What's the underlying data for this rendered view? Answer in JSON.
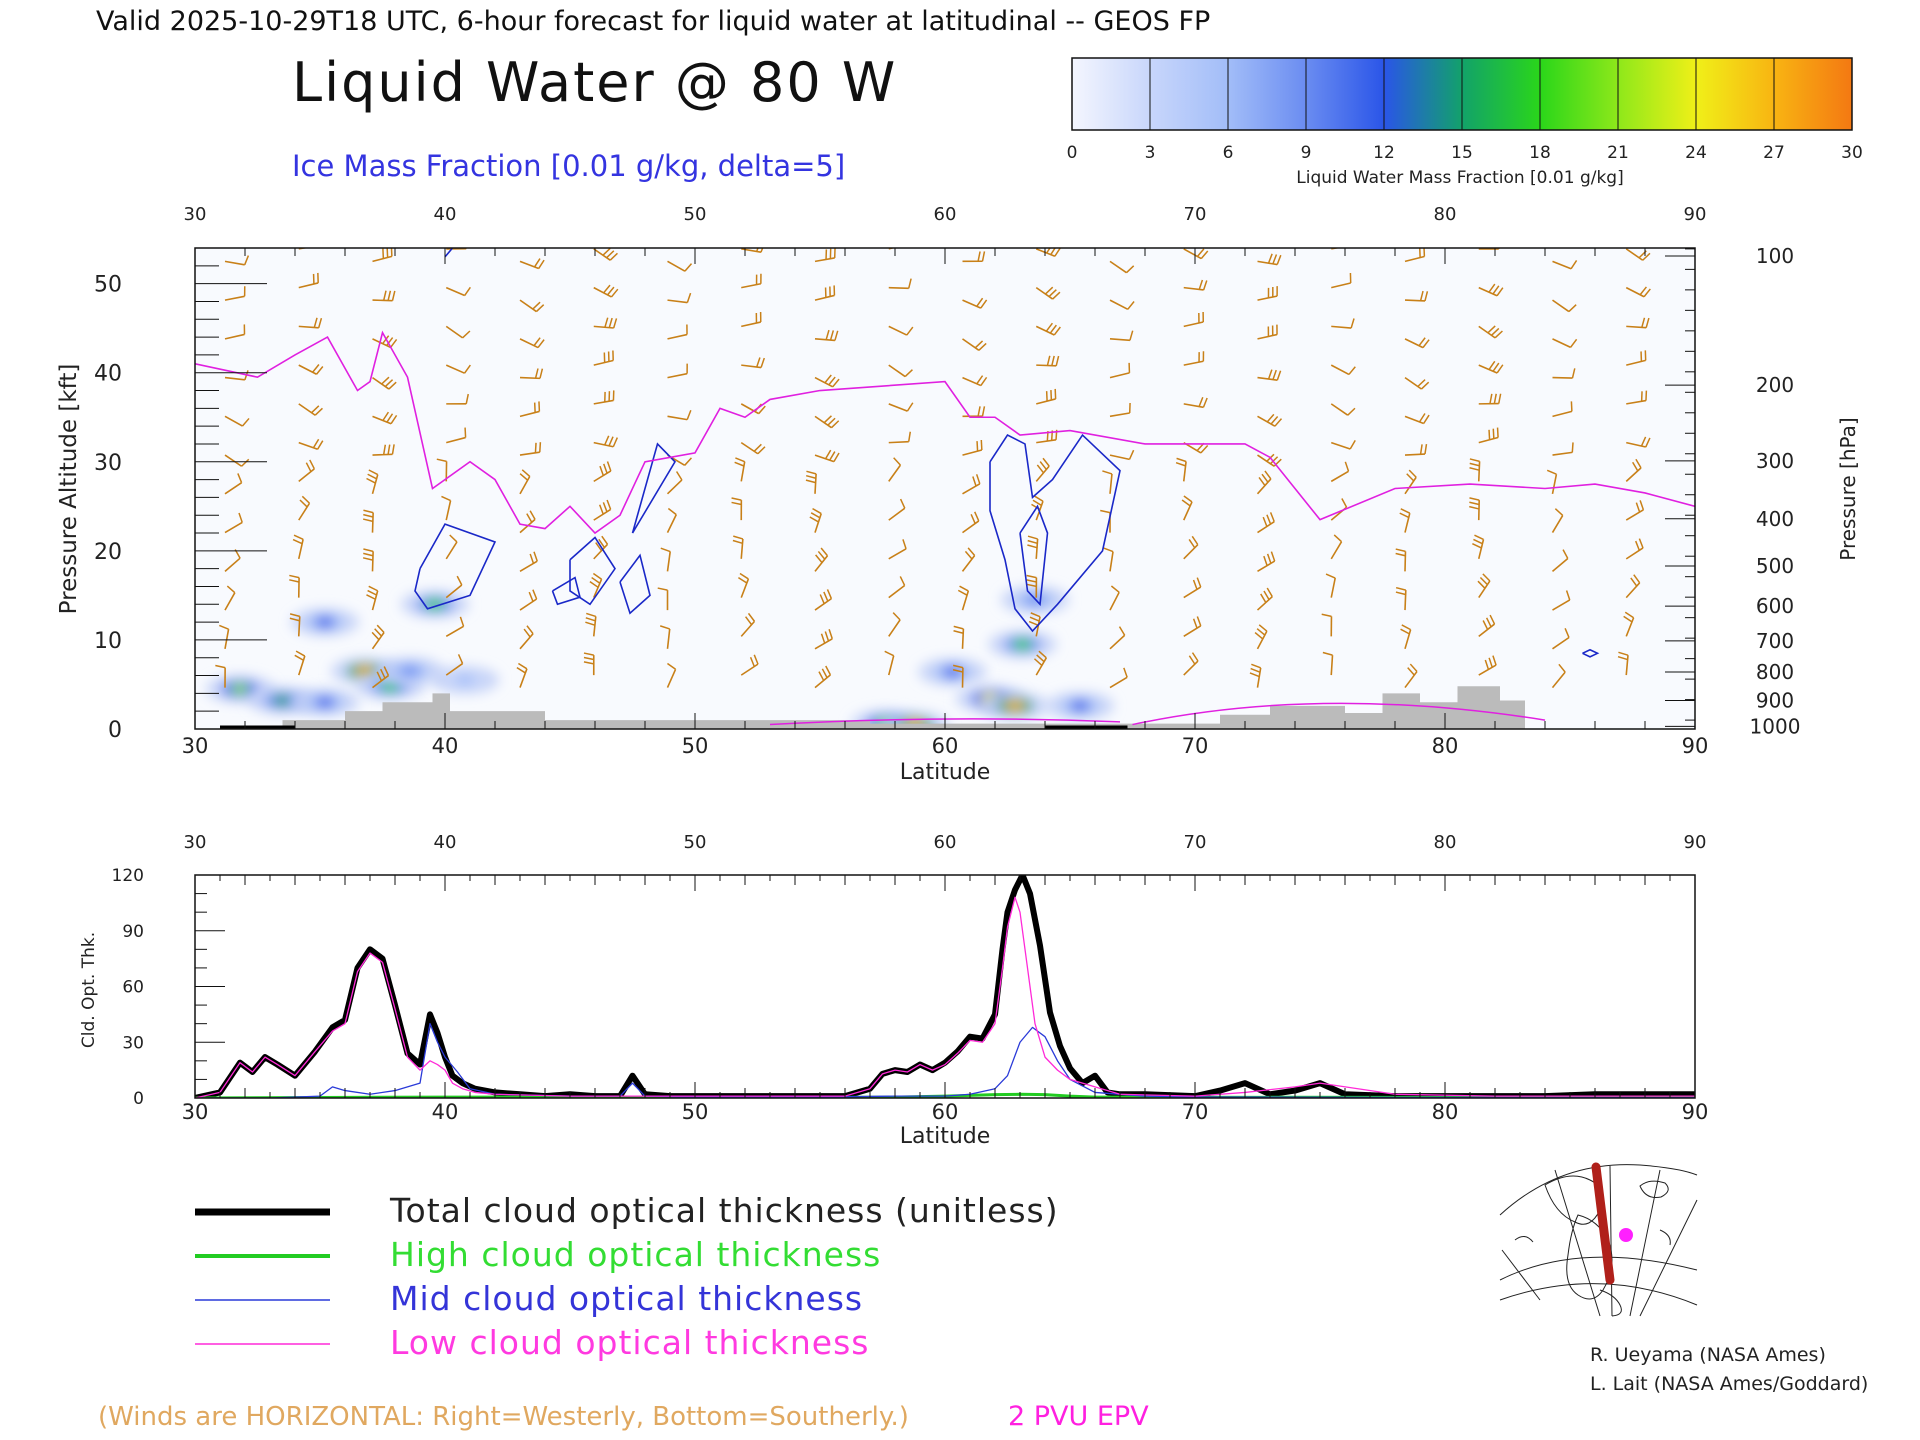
{
  "header": {
    "valid_line": "Valid 2025-10-29T18 UTC, 6-hour forecast for liquid water at latitudinal -- GEOS FP",
    "title": "Liquid Water @ 80 W",
    "subtitle": "Ice Mass Fraction [0.01 g/kg, delta=5]"
  },
  "colorbar": {
    "ticks": [
      "0",
      "3",
      "6",
      "9",
      "12",
      "15",
      "18",
      "21",
      "24",
      "27",
      "30"
    ],
    "colors": [
      "#f4f6fe",
      "#c8d6fb",
      "#a2bdf8",
      "#6a8cf1",
      "#2a55e8",
      "#12a26a",
      "#2ad61a",
      "#8ee81a",
      "#f0f018",
      "#f8b412",
      "#f47812",
      "#f03c10"
    ],
    "label": "Liquid Water Mass Fraction [0.01 g/kg]"
  },
  "chart_data": [
    {
      "type": "heatmap",
      "name": "liquid-water-cross-section",
      "xlabel": "Latitude",
      "ylabel": "Pressure Altitude [kft]",
      "ylabel_right": "Pressure [hPa]",
      "x_ticks": [
        "30",
        "40",
        "50",
        "60",
        "70",
        "80",
        "90"
      ],
      "xlim": [
        30,
        90
      ],
      "y_ticks": [
        "0",
        "10",
        "20",
        "30",
        "40",
        "50"
      ],
      "ylim": [
        0,
        54
      ],
      "pressure_ticks": [
        {
          "label": "100",
          "kft": 53.1
        },
        {
          "label": "200",
          "kft": 38.6
        },
        {
          "label": "300",
          "kft": 30.1
        },
        {
          "label": "400",
          "kft": 23.6
        },
        {
          "label": "500",
          "kft": 18.3
        },
        {
          "label": "600",
          "kft": 13.8
        },
        {
          "label": "700",
          "kft": 9.9
        },
        {
          "label": "800",
          "kft": 6.4
        },
        {
          "label": "900",
          "kft": 3.2
        },
        {
          "label": "1000",
          "kft": 0.3
        }
      ],
      "epv_line": [
        [
          30,
          41
        ],
        [
          32.5,
          39.5
        ],
        [
          34,
          42
        ],
        [
          35.3,
          44
        ],
        [
          36.5,
          38
        ],
        [
          37,
          39
        ],
        [
          37.5,
          44.5
        ],
        [
          38.5,
          39.5
        ],
        [
          39.5,
          27
        ],
        [
          41,
          30
        ],
        [
          42,
          28
        ],
        [
          43,
          23
        ],
        [
          44,
          22.5
        ],
        [
          45,
          25
        ],
        [
          46,
          22
        ],
        [
          47,
          24
        ],
        [
          48,
          30
        ],
        [
          50,
          31
        ],
        [
          51,
          36
        ],
        [
          52,
          35
        ],
        [
          53,
          37
        ],
        [
          55,
          38
        ],
        [
          60,
          39
        ],
        [
          61,
          35
        ],
        [
          62,
          35
        ],
        [
          63,
          33
        ],
        [
          65,
          33.5
        ],
        [
          68,
          32
        ],
        [
          72,
          32
        ],
        [
          73,
          30.5
        ],
        [
          75,
          23.5
        ],
        [
          78,
          27
        ],
        [
          81,
          27.5
        ],
        [
          84,
          27
        ],
        [
          86,
          27.5
        ],
        [
          88,
          26.5
        ],
        [
          90,
          25
        ]
      ],
      "liquid_water_blobs": [
        {
          "lat": 31.8,
          "kft": 4.5,
          "value": 20
        },
        {
          "lat": 33.5,
          "kft": 3.2,
          "value": 14
        },
        {
          "lat": 35.2,
          "kft": 3.0,
          "value": 12
        },
        {
          "lat": 36.8,
          "kft": 6.5,
          "value": 24
        },
        {
          "lat": 37.8,
          "kft": 4.8,
          "value": 16
        },
        {
          "lat": 38.6,
          "kft": 6.5,
          "value": 8
        },
        {
          "lat": 35.2,
          "kft": 12.0,
          "value": 10
        },
        {
          "lat": 39.6,
          "kft": 14.0,
          "value": 16
        },
        {
          "lat": 40.8,
          "kft": 5.5,
          "value": 6
        },
        {
          "lat": 57.6,
          "kft": 0.6,
          "value": 18
        },
        {
          "lat": 58.8,
          "kft": 0.4,
          "value": 24
        },
        {
          "lat": 60.3,
          "kft": 6.4,
          "value": 10
        },
        {
          "lat": 61.8,
          "kft": 3.4,
          "value": 22
        },
        {
          "lat": 62.8,
          "kft": 2.6,
          "value": 24
        },
        {
          "lat": 63.1,
          "kft": 9.5,
          "value": 16
        },
        {
          "lat": 63.6,
          "kft": 14.5,
          "value": 8
        },
        {
          "lat": 65.4,
          "kft": 2.6,
          "value": 12
        }
      ],
      "ice_contours": [
        [
          [
            39,
            18
          ],
          [
            40,
            23
          ],
          [
            42,
            21
          ],
          [
            41,
            15
          ],
          [
            39.3,
            13.5
          ],
          [
            38.8,
            15.5
          ],
          [
            39,
            18
          ]
        ],
        [
          [
            45,
            19
          ],
          [
            46,
            21.5
          ],
          [
            46.8,
            18
          ],
          [
            45.8,
            14
          ],
          [
            45,
            15.5
          ],
          [
            45,
            19
          ]
        ],
        [
          [
            44.3,
            15.5
          ],
          [
            45.2,
            17
          ],
          [
            45.4,
            14.8
          ],
          [
            44.5,
            14
          ],
          [
            44.3,
            15.5
          ]
        ],
        [
          [
            47,
            16.5
          ],
          [
            47.8,
            19.5
          ],
          [
            48.2,
            15
          ],
          [
            47.4,
            13
          ],
          [
            47,
            16.5
          ]
        ],
        [
          [
            47.5,
            22
          ],
          [
            48.5,
            32
          ],
          [
            49.2,
            30
          ],
          [
            47.5,
            22
          ]
        ],
        [
          [
            61.8,
            30
          ],
          [
            62.5,
            33
          ],
          [
            63.2,
            32
          ],
          [
            63.5,
            26
          ],
          [
            64.3,
            28
          ],
          [
            65.5,
            33
          ],
          [
            67,
            29
          ],
          [
            66.3,
            20
          ],
          [
            64.5,
            14
          ],
          [
            63.5,
            11
          ],
          [
            62.8,
            13.5
          ],
          [
            62.4,
            19
          ],
          [
            61.8,
            24.5
          ],
          [
            61.8,
            30
          ]
        ],
        [
          [
            63,
            22
          ],
          [
            63.7,
            25
          ],
          [
            64.1,
            22
          ],
          [
            63.8,
            14
          ],
          [
            63.3,
            15.5
          ],
          [
            63,
            22
          ]
        ],
        [
          [
            39.8,
            55
          ],
          [
            40.3,
            54
          ],
          [
            40,
            53
          ]
        ],
        [
          [
            85.5,
            8.5
          ],
          [
            85.8,
            8.9
          ],
          [
            86.1,
            8.5
          ],
          [
            85.8,
            8.1
          ],
          [
            85.5,
            8.5
          ]
        ]
      ],
      "terrain": [
        [
          33.5,
          1
        ],
        [
          36,
          1
        ],
        [
          36,
          2
        ],
        [
          37.5,
          2
        ],
        [
          37.5,
          3
        ],
        [
          39.5,
          3
        ],
        [
          39.5,
          4
        ],
        [
          40.2,
          4
        ],
        [
          40.2,
          2
        ],
        [
          44,
          2
        ],
        [
          44,
          1
        ],
        [
          51,
          1
        ],
        [
          57,
          1
        ],
        [
          57,
          0.6
        ],
        [
          63,
          0.6
        ],
        [
          71,
          0.6
        ],
        [
          71,
          1.6
        ],
        [
          73,
          1.6
        ],
        [
          73,
          2.6
        ],
        [
          76,
          2.6
        ],
        [
          76,
          1.8
        ],
        [
          77.5,
          1.8
        ],
        [
          77.5,
          4
        ],
        [
          79,
          4
        ],
        [
          79,
          3
        ],
        [
          80.5,
          3
        ],
        [
          80.5,
          4.8
        ],
        [
          82.2,
          4.8
        ],
        [
          82.2,
          3.2
        ],
        [
          83.2,
          3.2
        ],
        [
          83.2,
          0.6
        ]
      ]
    },
    {
      "type": "line",
      "name": "cloud-optical-thickness",
      "xlabel": "Latitude",
      "ylabel": "Cld. Opt. Thk.",
      "x_ticks": [
        "30",
        "40",
        "50",
        "60",
        "70",
        "80",
        "90"
      ],
      "xlim": [
        30,
        90
      ],
      "y_ticks": [
        "0",
        "30",
        "60",
        "90",
        "120"
      ],
      "ylim": [
        0,
        120
      ],
      "series": [
        {
          "name": "Total cloud optical thickness (unitless)",
          "color": "#000000",
          "width": 6,
          "x": [
            30,
            31,
            31.8,
            32.3,
            32.8,
            33.3,
            34,
            34.8,
            35.5,
            36,
            36.5,
            37,
            37.5,
            38,
            38.5,
            39,
            39.4,
            39.7,
            40,
            40.3,
            40.7,
            41.2,
            42,
            43,
            44,
            45,
            46,
            47,
            47.5,
            48,
            49,
            50,
            52,
            54,
            56,
            57,
            57.5,
            58,
            58.5,
            59,
            59.5,
            60,
            60.5,
            61,
            61.5,
            62,
            62.3,
            62.5,
            62.8,
            63.1,
            63.4,
            63.8,
            64.2,
            64.6,
            65,
            65.5,
            66,
            66.5,
            67,
            68,
            70,
            71,
            72,
            73,
            74,
            75,
            76,
            78,
            80,
            82,
            84,
            86,
            88,
            90
          ],
          "y": [
            0,
            3,
            19,
            14,
            22,
            18,
            12,
            25,
            38,
            42,
            70,
            80,
            75,
            50,
            24,
            18,
            45,
            35,
            22,
            12,
            8,
            5,
            3,
            2,
            1,
            2,
            1,
            1,
            12,
            2,
            1,
            1,
            1,
            1,
            1,
            5,
            13,
            15,
            14,
            18,
            15,
            19,
            25,
            33,
            32,
            45,
            80,
            100,
            112,
            120,
            110,
            82,
            46,
            28,
            16,
            8,
            12,
            3,
            2,
            2,
            1,
            4,
            8,
            2,
            4,
            8,
            2,
            1,
            1,
            1,
            1,
            2,
            2,
            2
          ]
        },
        {
          "name": "High cloud optical thickness",
          "color": "#22cc22",
          "width": 3,
          "x": [
            30,
            40,
            50,
            55,
            58,
            60,
            62,
            63,
            64,
            65,
            66,
            70,
            80,
            90
          ],
          "y": [
            0,
            0.5,
            0.3,
            0.3,
            0.5,
            1,
            1.8,
            2,
            1.8,
            1,
            0.5,
            0.4,
            0.3,
            0.2
          ]
        },
        {
          "name": "Mid cloud optical thickness",
          "color": "#2a3ad8",
          "width": 1.3,
          "x": [
            30,
            33,
            35,
            35.5,
            36,
            37,
            38,
            39,
            39.4,
            39.7,
            40,
            40.5,
            41,
            42,
            45,
            47,
            47.5,
            48,
            50,
            55,
            58,
            60,
            61,
            62,
            62.5,
            63,
            63.5,
            64,
            64.5,
            65,
            66,
            68,
            70,
            80,
            90
          ],
          "y": [
            0,
            0,
            1,
            6,
            4,
            2,
            4,
            8,
            40,
            30,
            22,
            14,
            5,
            2,
            1,
            1,
            8,
            1,
            0.5,
            0.5,
            1,
            1,
            2,
            5,
            12,
            30,
            38,
            33,
            20,
            10,
            3,
            1,
            0.5,
            0.3,
            0.2
          ]
        },
        {
          "name": "Low cloud optical thickness",
          "color": "#ff2ad8",
          "width": 1.3,
          "x": [
            30,
            31,
            31.8,
            32.3,
            32.8,
            33.3,
            34,
            34.8,
            35.5,
            36,
            36.5,
            37,
            37.5,
            38,
            38.5,
            39,
            39.4,
            39.7,
            40,
            40.3,
            40.7,
            41.2,
            42,
            45,
            48,
            52,
            56,
            57,
            57.5,
            58,
            58.5,
            59,
            59.5,
            60,
            60.5,
            61,
            61.5,
            62,
            62.3,
            62.5,
            62.8,
            63,
            63.3,
            63.6,
            64,
            64.5,
            65,
            66,
            67,
            70,
            72,
            74,
            75,
            78,
            82,
            86,
            90
          ],
          "y": [
            0,
            3,
            19,
            14,
            22,
            18,
            12,
            25,
            36,
            40,
            68,
            78,
            73,
            48,
            22,
            15,
            20,
            18,
            15,
            8,
            5,
            3,
            2,
            1,
            1,
            1,
            1,
            5,
            13,
            15,
            14,
            18,
            15,
            18,
            24,
            31,
            30,
            40,
            70,
            92,
            108,
            100,
            70,
            40,
            22,
            15,
            10,
            6,
            2,
            1,
            3,
            6,
            8,
            2,
            1,
            1,
            1
          ]
        }
      ]
    }
  ],
  "legend": {
    "items": [
      {
        "label": "Total cloud optical thickness (unitless)",
        "color": "#000000",
        "text_color": "#222222"
      },
      {
        "label": "High cloud optical thickness",
        "color": "#22cc22",
        "text_color": "#33dd33"
      },
      {
        "label": "Mid cloud optical thickness",
        "color": "#2a3ad8",
        "text_color": "#3434d8"
      },
      {
        "label": "Low cloud optical thickness",
        "color": "#ff2ad8",
        "text_color": "#ff3ae0"
      }
    ]
  },
  "footer": {
    "winds_note": "(Winds are HORIZONTAL: Right=Westerly, Bottom=Southerly.)",
    "epv_note": "2 PVU EPV",
    "credit_1": "R. Ueyama (NASA Ames)",
    "credit_2": "L. Lait (NASA Ames/Goddard)"
  },
  "colors": {
    "wind_barb": "#c88018",
    "epv": "#e020e0",
    "ice_contour": "#1a28c8",
    "terrain": "#bbbbbb",
    "map_track": "#b0201a",
    "map_marker": "#ff20ff"
  },
  "map": {
    "icon": "polar-stereographic-locator-map-icon"
  }
}
